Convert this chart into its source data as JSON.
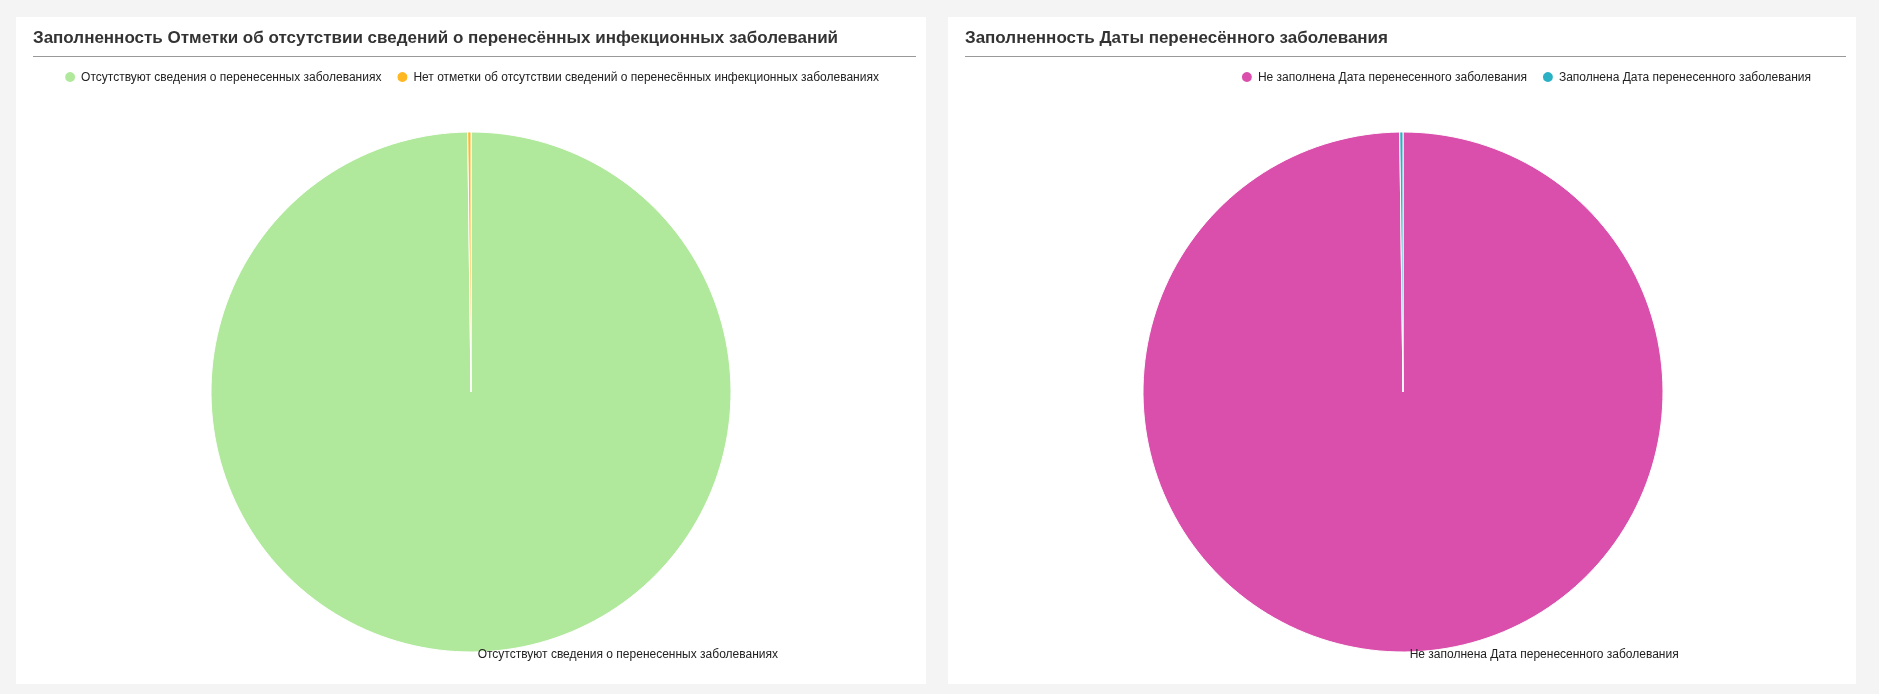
{
  "chart_data": [
    {
      "type": "pie",
      "title": "Заполненность Отметки об отсутствии сведений о перенесённых инфекционных заболеваний",
      "categories": [
        "Отсутствуют сведения о перенесенных заболеваниях",
        "Нет отметки об отсутствии сведений о перенесённых инфекционных заболеваниях"
      ],
      "values": [
        99.8,
        0.2
      ],
      "colors": [
        "#b1e99c",
        "#ffb822"
      ],
      "legend": "top"
    },
    {
      "type": "pie",
      "title": "Заполненность Даты перенесённого заболевания",
      "categories": [
        "Не заполнена Дата перенесенного заболевания",
        "Заполнена Дата перенесенного заболевания"
      ],
      "values": [
        99.8,
        0.2
      ],
      "colors": [
        "#d94fab",
        "#2ab2c4"
      ],
      "legend": "top right"
    }
  ]
}
